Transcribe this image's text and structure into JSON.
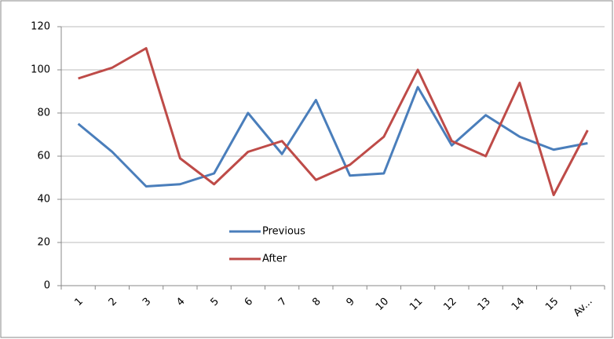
{
  "chart_data": {
    "type": "line",
    "categories": [
      "1",
      "2",
      "3",
      "4",
      "5",
      "6",
      "7",
      "8",
      "9",
      "10",
      "11",
      "12",
      "13",
      "14",
      "15",
      "Av..."
    ],
    "series": [
      {
        "name": "Previous",
        "color": "#4a7ebb",
        "values": [
          75,
          62,
          46,
          47,
          52,
          80,
          61,
          86,
          51,
          52,
          92,
          65,
          79,
          69,
          63,
          66
        ]
      },
      {
        "name": "After",
        "color": "#be4b48",
        "values": [
          96,
          101,
          110,
          59,
          47,
          62,
          67,
          49,
          56,
          69,
          100,
          67,
          60,
          94,
          42,
          72
        ]
      }
    ],
    "ylim": [
      0,
      120
    ],
    "yticks": [
      0,
      20,
      40,
      60,
      80,
      100,
      120
    ],
    "grid": true
  }
}
